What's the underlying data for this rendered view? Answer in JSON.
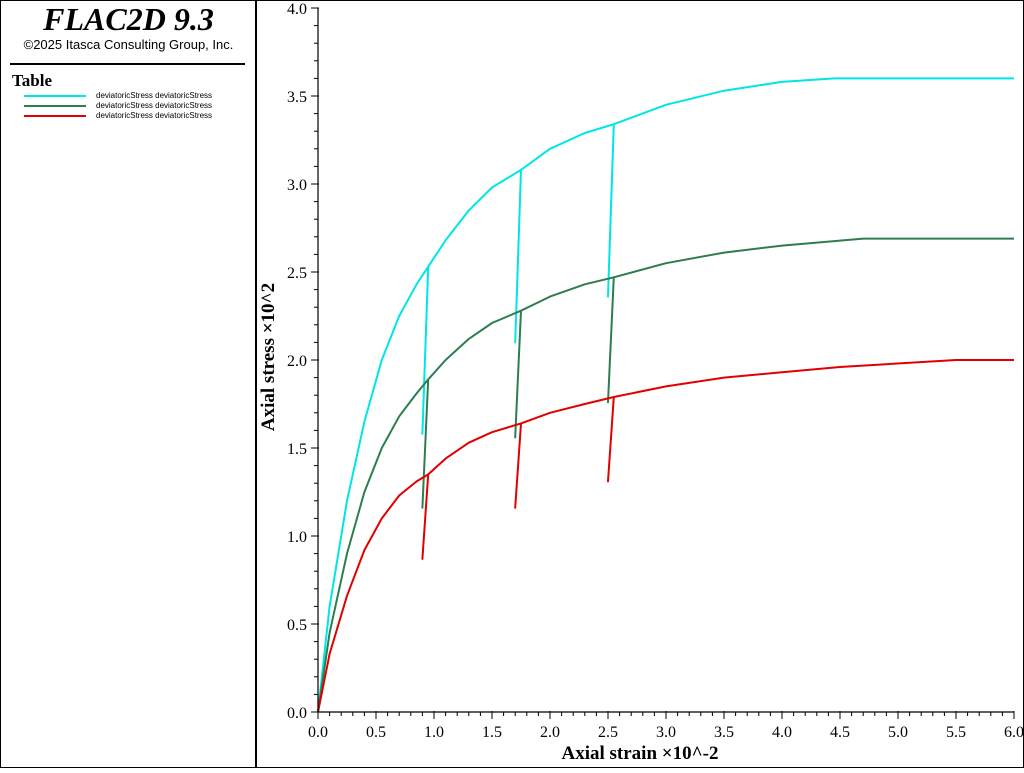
{
  "app": {
    "title": "FLAC2D 9.3",
    "copyright": "©2025 Itasca Consulting Group, Inc."
  },
  "legend": {
    "title": "Table",
    "items": [
      {
        "label": "deviatoricStress deviatoricStress",
        "color": "#00e5e5"
      },
      {
        "label": "deviatoricStress deviatoricStress",
        "color": "#2e7d4f"
      },
      {
        "label": "deviatoricStress deviatoricStress",
        "color": "#e00000"
      }
    ]
  },
  "chart_data": {
    "type": "line",
    "xlabel": "Axial strain ×10^-2",
    "ylabel": "Axial stress ×10^2",
    "xlim": [
      0,
      6
    ],
    "ylim": [
      0,
      4
    ],
    "xticks": [
      "0.0",
      "0.5",
      "1.0",
      "1.5",
      "2.0",
      "2.5",
      "3.0",
      "3.5",
      "4.0",
      "4.5",
      "5.0",
      "5.5",
      "6.0"
    ],
    "yticks": [
      "0.0",
      "0.5",
      "1.0",
      "1.5",
      "2.0",
      "2.5",
      "3.0",
      "3.5",
      "4.0"
    ],
    "series": [
      {
        "color": "#00e5e5",
        "points": [
          [
            0,
            0
          ],
          [
            0.1,
            0.6
          ],
          [
            0.25,
            1.2
          ],
          [
            0.4,
            1.65
          ],
          [
            0.55,
            2.0
          ],
          [
            0.7,
            2.25
          ],
          [
            0.85,
            2.43
          ],
          [
            0.95,
            2.53
          ],
          [
            0.9,
            1.58
          ],
          [
            0.95,
            2.53
          ],
          [
            1.1,
            2.68
          ],
          [
            1.3,
            2.85
          ],
          [
            1.5,
            2.98
          ],
          [
            1.75,
            3.08
          ],
          [
            1.7,
            2.1
          ],
          [
            1.75,
            3.08
          ],
          [
            2.0,
            3.2
          ],
          [
            2.3,
            3.29
          ],
          [
            2.55,
            3.34
          ],
          [
            2.5,
            2.36
          ],
          [
            2.55,
            3.34
          ],
          [
            3.0,
            3.45
          ],
          [
            3.5,
            3.53
          ],
          [
            4.0,
            3.58
          ],
          [
            4.45,
            3.6
          ],
          [
            6.0,
            3.6
          ]
        ]
      },
      {
        "color": "#2e7d4f",
        "points": [
          [
            0,
            0
          ],
          [
            0.1,
            0.45
          ],
          [
            0.25,
            0.9
          ],
          [
            0.4,
            1.25
          ],
          [
            0.55,
            1.5
          ],
          [
            0.7,
            1.68
          ],
          [
            0.85,
            1.81
          ],
          [
            0.95,
            1.89
          ],
          [
            0.9,
            1.16
          ],
          [
            0.95,
            1.89
          ],
          [
            1.1,
            2.0
          ],
          [
            1.3,
            2.12
          ],
          [
            1.5,
            2.21
          ],
          [
            1.75,
            2.28
          ],
          [
            1.7,
            1.56
          ],
          [
            1.75,
            2.28
          ],
          [
            2.0,
            2.36
          ],
          [
            2.3,
            2.43
          ],
          [
            2.55,
            2.47
          ],
          [
            2.5,
            1.76
          ],
          [
            2.55,
            2.47
          ],
          [
            3.0,
            2.55
          ],
          [
            3.5,
            2.61
          ],
          [
            4.0,
            2.65
          ],
          [
            4.7,
            2.69
          ],
          [
            6.0,
            2.69
          ]
        ]
      },
      {
        "color": "#e00000",
        "points": [
          [
            0,
            0
          ],
          [
            0.1,
            0.33
          ],
          [
            0.25,
            0.66
          ],
          [
            0.4,
            0.92
          ],
          [
            0.55,
            1.1
          ],
          [
            0.7,
            1.23
          ],
          [
            0.85,
            1.31
          ],
          [
            0.95,
            1.35
          ],
          [
            0.9,
            0.87
          ],
          [
            0.95,
            1.35
          ],
          [
            1.1,
            1.44
          ],
          [
            1.3,
            1.53
          ],
          [
            1.5,
            1.59
          ],
          [
            1.75,
            1.64
          ],
          [
            1.7,
            1.16
          ],
          [
            1.75,
            1.64
          ],
          [
            2.0,
            1.7
          ],
          [
            2.3,
            1.75
          ],
          [
            2.55,
            1.79
          ],
          [
            2.5,
            1.31
          ],
          [
            2.55,
            1.79
          ],
          [
            3.0,
            1.85
          ],
          [
            3.5,
            1.9
          ],
          [
            4.0,
            1.93
          ],
          [
            4.5,
            1.96
          ],
          [
            5.5,
            2.0
          ],
          [
            6.0,
            2.0
          ]
        ]
      }
    ]
  }
}
